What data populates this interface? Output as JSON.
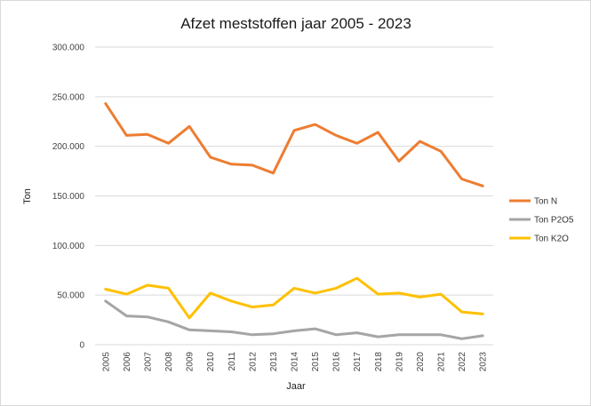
{
  "chart_data": {
    "type": "line",
    "title": "Afzet meststoffen jaar 2005 - 2023",
    "xlabel": "Jaar",
    "ylabel": "Ton",
    "ylim": [
      0,
      300000
    ],
    "yticks": [
      {
        "value": 0,
        "label": "0"
      },
      {
        "value": 50000,
        "label": "50.000"
      },
      {
        "value": 100000,
        "label": "100.000"
      },
      {
        "value": 150000,
        "label": "150.000"
      },
      {
        "value": 200000,
        "label": "200.000"
      },
      {
        "value": 250000,
        "label": "250.000"
      },
      {
        "value": 300000,
        "label": "300.000"
      }
    ],
    "grid": true,
    "legend_position": "right",
    "categories": [
      "2005",
      "2006",
      "2007",
      "2008",
      "2009",
      "2010",
      "2011",
      "2012",
      "2013",
      "2014",
      "2015",
      "2016",
      "2017",
      "2018",
      "2019",
      "2020",
      "2021",
      "2022",
      "2023"
    ],
    "series": [
      {
        "name": "Ton N",
        "color": "#ED7D31",
        "values": [
          243000,
          211000,
          212000,
          203000,
          220000,
          189000,
          182000,
          181000,
          173000,
          216000,
          222000,
          211000,
          203000,
          214000,
          185000,
          205000,
          195000,
          167000,
          160000
        ]
      },
      {
        "name": "Ton P2O5",
        "color": "#A5A5A5",
        "values": [
          44000,
          29000,
          28000,
          23000,
          15000,
          14000,
          13000,
          10000,
          11000,
          14000,
          16000,
          10000,
          12000,
          8000,
          10000,
          10000,
          10000,
          6000,
          9000
        ]
      },
      {
        "name": "Ton K2O",
        "color": "#FFC000",
        "values": [
          56000,
          51000,
          60000,
          57000,
          27000,
          52000,
          44000,
          38000,
          40000,
          57000,
          52000,
          57000,
          67000,
          51000,
          52000,
          48000,
          51000,
          33000,
          31000
        ]
      }
    ]
  }
}
